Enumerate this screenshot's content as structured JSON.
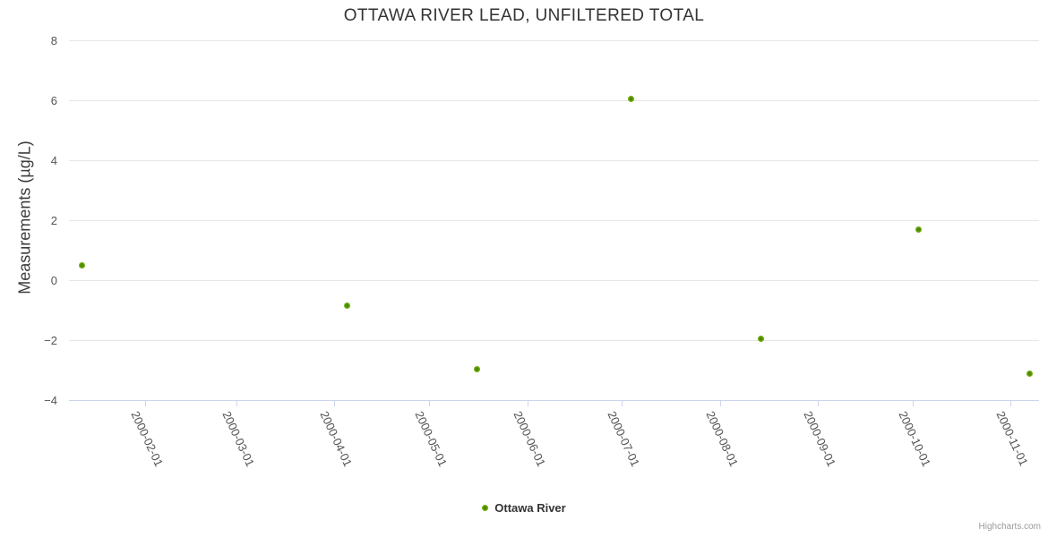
{
  "chart": {
    "title": "OTTAWA RIVER LEAD, UNFILTERED TOTAL",
    "legend": {
      "label": "Ottawa River"
    },
    "credits": "Highcharts.com"
  },
  "colors": {
    "series_green": "#6fae10",
    "series_green_dark": "#3f7a00",
    "gridline": "#e6e6e6",
    "axis_line": "#ccd6eb",
    "title_text": "#333333",
    "tick_label_text": "#545454",
    "credits_text": "#999999"
  },
  "chart_data": {
    "type": "scatter",
    "title": "OTTAWA RIVER LEAD, UNFILTERED TOTAL",
    "xlabel": "",
    "ylabel": "Measurements (µg/L)",
    "ylim": [
      -4,
      8
    ],
    "y_ticks": [
      8,
      6,
      4,
      2,
      0,
      -2,
      -4
    ],
    "x_range": [
      "2000-01-08",
      "2000-11-10"
    ],
    "x_tick_labels": [
      "2000-02-01",
      "2000-03-01",
      "2000-04-01",
      "2000-05-01",
      "2000-06-01",
      "2000-07-01",
      "2000-08-01",
      "2000-09-01",
      "2000-10-01",
      "2000-11-01"
    ],
    "grid": "horizontal-only",
    "legend_position": "bottom-center",
    "series": [
      {
        "name": "Ottawa River",
        "color": "#6fae10",
        "points": [
          {
            "x": "2000-01-12",
            "y": 0.5
          },
          {
            "x": "2000-04-05",
            "y": -0.85
          },
          {
            "x": "2000-05-16",
            "y": -2.95
          },
          {
            "x": "2000-07-04",
            "y": 6.05
          },
          {
            "x": "2000-08-14",
            "y": -1.95
          },
          {
            "x": "2000-10-03",
            "y": 1.7
          },
          {
            "x": "2000-11-07",
            "y": -3.1
          }
        ]
      }
    ]
  }
}
